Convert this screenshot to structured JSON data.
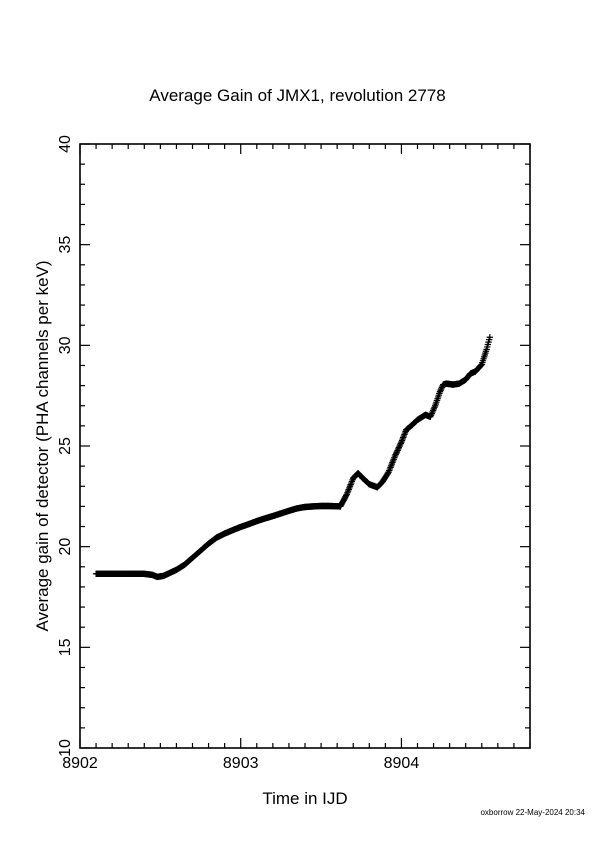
{
  "chart_data": {
    "type": "scatter",
    "title": "Average Gain of JMX1, revolution 2778",
    "xlabel": "Time in IJD",
    "ylabel": "Average gain of detector (PHA channels per keV)",
    "xlim": [
      8902,
      8904.8
    ],
    "ylim": [
      10,
      40
    ],
    "xticks": [
      8902,
      8903,
      8904
    ],
    "xtick_labels": [
      "8902",
      "8903",
      "8904"
    ],
    "yticks": [
      10,
      15,
      20,
      25,
      30,
      35,
      40
    ],
    "ytick_labels": [
      "10",
      "15",
      "20",
      "25",
      "30",
      "35",
      "40"
    ],
    "marker": "plus",
    "grid": false,
    "series": [
      {
        "color": "#000000",
        "x": [
          8902.1,
          8902.15,
          8902.2,
          8902.25,
          8902.3,
          8902.35,
          8902.4,
          8902.45,
          8902.48,
          8902.52,
          8902.56,
          8902.6,
          8902.65,
          8902.7,
          8902.75,
          8902.8,
          8902.85,
          8902.9,
          8902.95,
          8903.0,
          8903.05,
          8903.1,
          8903.15,
          8903.2,
          8903.25,
          8903.3,
          8903.35,
          8903.4,
          8903.45,
          8903.5,
          8903.55,
          8903.62,
          8903.66,
          8903.7,
          8903.73,
          8903.76,
          8903.8,
          8903.85,
          8903.88,
          8903.92,
          8903.96,
          8904.0,
          8904.03,
          8904.06,
          8904.1,
          8904.15,
          8904.18,
          8904.21,
          8904.24,
          8904.26,
          8904.28,
          8904.32,
          8904.36,
          8904.4,
          8904.43,
          8904.46,
          8904.5,
          8904.53,
          8904.55
        ],
        "y": [
          18.65,
          18.65,
          18.65,
          18.65,
          18.65,
          18.65,
          18.65,
          18.6,
          18.5,
          18.55,
          18.7,
          18.85,
          19.1,
          19.45,
          19.8,
          20.15,
          20.45,
          20.65,
          20.82,
          20.98,
          21.12,
          21.27,
          21.4,
          21.52,
          21.65,
          21.78,
          21.9,
          21.97,
          22.0,
          22.02,
          22.02,
          22.0,
          22.6,
          23.4,
          23.65,
          23.4,
          23.1,
          22.95,
          23.2,
          23.7,
          24.5,
          25.2,
          25.8,
          26.0,
          26.3,
          26.55,
          26.45,
          27.0,
          27.7,
          28.05,
          28.1,
          28.05,
          28.1,
          28.3,
          28.6,
          28.7,
          29.05,
          29.8,
          30.4
        ]
      }
    ]
  },
  "footer": "oxborrow 22-May-2024 20:34"
}
